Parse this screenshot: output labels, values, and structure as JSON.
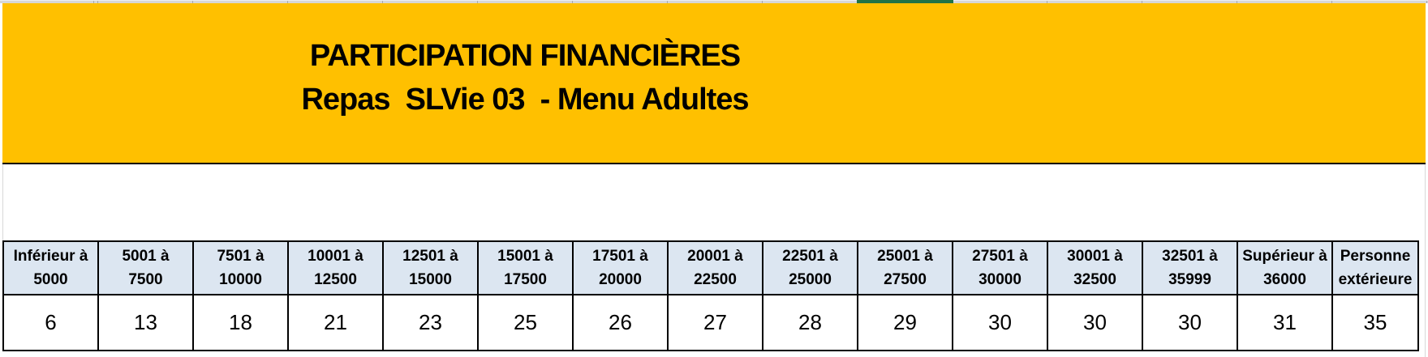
{
  "app": {
    "selected_column_color": "#217346",
    "header_strip_color": "#d7d7d7"
  },
  "banner": {
    "bg_color": "#FFC000",
    "title_line1": "PARTICIPATION FINANCIÈRES",
    "title_line2": "Repas  SLVie 03  - Menu Adultes"
  },
  "table": {
    "header_bg": "#DCE6F1",
    "columns": [
      {
        "range_line1": "Inférieur à",
        "range_line2": "5000",
        "value": "6"
      },
      {
        "range_line1": "5001 à",
        "range_line2": "7500",
        "value": "13"
      },
      {
        "range_line1": "7501 à",
        "range_line2": "10000",
        "value": "18"
      },
      {
        "range_line1": "10001 à",
        "range_line2": "12500",
        "value": "21"
      },
      {
        "range_line1": "12501 à",
        "range_line2": "15000",
        "value": "23"
      },
      {
        "range_line1": "15001 à",
        "range_line2": "17500",
        "value": "25"
      },
      {
        "range_line1": "17501 à",
        "range_line2": "20000",
        "value": "26"
      },
      {
        "range_line1": "20001 à",
        "range_line2": "22500",
        "value": "27"
      },
      {
        "range_line1": "22501 à",
        "range_line2": "25000",
        "value": "28"
      },
      {
        "range_line1": "25001 à",
        "range_line2": "27500",
        "value": "29"
      },
      {
        "range_line1": "27501 à",
        "range_line2": "30000",
        "value": "30"
      },
      {
        "range_line1": "30001 à",
        "range_line2": "32500",
        "value": "30"
      },
      {
        "range_line1": "32501 à",
        "range_line2": "35999",
        "value": "30"
      },
      {
        "range_line1": "Supérieur à",
        "range_line2": "36000",
        "value": "31"
      },
      {
        "range_line1": "Personne",
        "range_line2": "extérieure",
        "value": "35"
      }
    ]
  }
}
